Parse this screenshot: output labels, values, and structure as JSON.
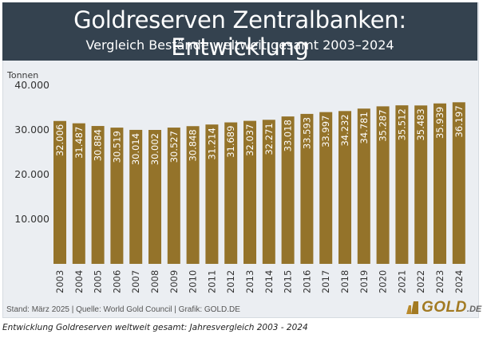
{
  "header": {
    "title": "Goldreserven Zentralbanken: Entwicklung",
    "subtitle": "Vergleich Bestände weltweit gesamt 2003–2024"
  },
  "footer": {
    "source": "Stand: März 2025  |  Quelle: World Gold Council  |  Grafik: GOLD.DE",
    "logo_text": "GOLD",
    "logo_suffix": ".DE"
  },
  "caption": "Entwicklung Goldreserven weltweit gesamt: Jahresvergleich 2003 - 2024",
  "colors": {
    "bar": "#94732a",
    "header_bg": "#34424f",
    "plot_bg": "#ebeef2",
    "label": "#ffffff"
  },
  "chart_data": {
    "type": "bar",
    "title": "Goldreserven Zentralbanken: Entwicklung",
    "subtitle": "Vergleich Bestände weltweit gesamt 2003–2024",
    "xlabel": "",
    "ylabel": "Tonnen",
    "ylim": [
      0,
      40000
    ],
    "yticks": [
      10000,
      20000,
      30000,
      40000
    ],
    "ytick_labels": [
      "10.000",
      "20.000",
      "30.000",
      "40.000"
    ],
    "grid": false,
    "categories": [
      "2003",
      "2004",
      "2005",
      "2006",
      "2007",
      "2008",
      "2009",
      "2010",
      "2011",
      "2012",
      "2013",
      "2014",
      "2015",
      "2016",
      "2017",
      "2018",
      "2019",
      "2020",
      "2021",
      "2022",
      "2023",
      "2024"
    ],
    "values": [
      32006,
      31487,
      30884,
      30519,
      30014,
      30002,
      30527,
      30848,
      31214,
      31689,
      32037,
      32271,
      33018,
      33593,
      33997,
      34232,
      34781,
      35287,
      35512,
      35483,
      35939,
      36197
    ],
    "value_labels": [
      "32.006",
      "31.487",
      "30.884",
      "30.519",
      "30.014",
      "30.002",
      "30.527",
      "30.848",
      "31.214",
      "31.689",
      "32.037",
      "32.271",
      "33.018",
      "33.593",
      "33.997",
      "34.232",
      "34.781",
      "35.287",
      "35.512",
      "35.483",
      "35.939",
      "36.197"
    ]
  }
}
